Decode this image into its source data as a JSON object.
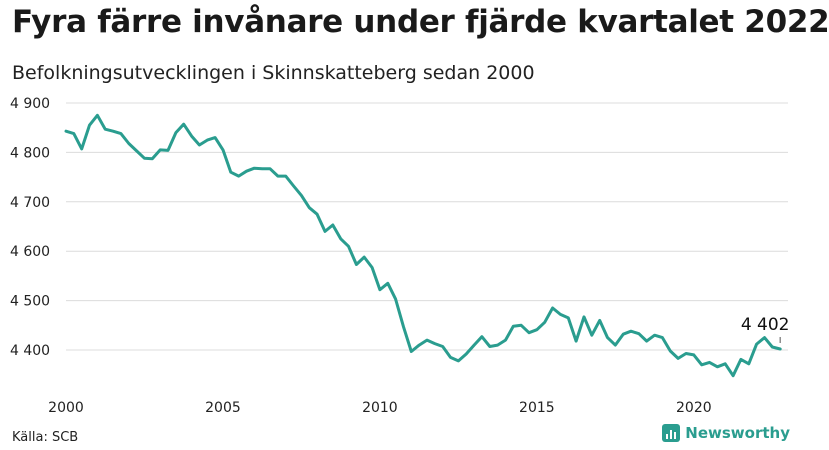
{
  "title": "Fyra färre invånare under fjärde kvartalet 2022",
  "subtitle": "Befolkningsutvecklingen i Skinnskatteberg sedan 2000",
  "source": "Källa: SCB",
  "brand": {
    "name": "Newsworthy",
    "icon": "bar-chart-icon",
    "color": "#2a9d8f"
  },
  "chart_data": {
    "type": "line",
    "title": "Fyra färre invånare under fjärde kvartalet 2022",
    "subtitle": "Befolkningsutvecklingen i Skinnskatteberg sedan 2000",
    "xlabel": "",
    "ylabel": "",
    "xlim": [
      2000,
      2023
    ],
    "ylim": [
      4340,
      4900
    ],
    "x_ticks": [
      2000,
      2005,
      2010,
      2015,
      2020
    ],
    "x_tick_labels": [
      "2000",
      "2005",
      "2010",
      "2015",
      "2020"
    ],
    "y_ticks": [
      4400,
      4500,
      4600,
      4700,
      4800,
      4900
    ],
    "y_tick_labels": [
      "4 400",
      "4 500",
      "4 600",
      "4 700",
      "4 800",
      "4 900"
    ],
    "grid": true,
    "line_color": "#2a9d8f",
    "annotation": {
      "label": "4 402",
      "x": 2022.75,
      "y": 4402
    },
    "series": [
      {
        "x": [
          2000.0,
          2000.25,
          2000.5,
          2000.75,
          2001.0,
          2001.25,
          2001.5,
          2001.75,
          2002.0,
          2002.25,
          2002.5,
          2002.75,
          2003.0,
          2003.25,
          2003.5,
          2003.75,
          2004.0,
          2004.25,
          2004.5,
          2004.75,
          2005.0,
          2005.25,
          2005.5,
          2005.75,
          2006.0,
          2006.25,
          2006.5,
          2006.75,
          2007.0,
          2007.25,
          2007.5,
          2007.75,
          2008.0,
          2008.25,
          2008.5,
          2008.75,
          2009.0,
          2009.25,
          2009.5,
          2009.75,
          2010.0,
          2010.25,
          2010.5,
          2010.75,
          2011.0,
          2011.25,
          2011.5,
          2011.75,
          2012.0,
          2012.25,
          2012.5,
          2012.75,
          2013.0,
          2013.25,
          2013.5,
          2013.75,
          2014.0,
          2014.25,
          2014.5,
          2014.75,
          2015.0,
          2015.25,
          2015.5,
          2015.75,
          2016.0,
          2016.25,
          2016.5,
          2016.75,
          2017.0,
          2017.25,
          2017.5,
          2017.75,
          2018.0,
          2018.25,
          2018.5,
          2018.75,
          2019.0,
          2019.25,
          2019.5,
          2019.75,
          2020.0,
          2020.25,
          2020.5,
          2020.75,
          2021.0,
          2021.25,
          2021.5,
          2021.75,
          2022.0,
          2022.25,
          2022.5,
          2022.75
        ],
        "values": [
          4843,
          4838,
          4807,
          4855,
          4875,
          4847,
          4843,
          4838,
          4818,
          4803,
          4788,
          4787,
          4805,
          4804,
          4840,
          4857,
          4833,
          4815,
          4825,
          4830,
          4805,
          4760,
          4752,
          4762,
          4768,
          4767,
          4767,
          4752,
          4752,
          4732,
          4713,
          4688,
          4675,
          4640,
          4653,
          4625,
          4610,
          4573,
          4588,
          4567,
          4522,
          4535,
          4503,
          4447,
          4397,
          4410,
          4420,
          4413,
          4407,
          4385,
          4378,
          4392,
          4410,
          4427,
          4407,
          4410,
          4420,
          4448,
          4450,
          4435,
          4441,
          4456,
          4485,
          4472,
          4465,
          4418,
          4467,
          4430,
          4460,
          4425,
          4410,
          4432,
          4438,
          4433,
          4418,
          4430,
          4425,
          4398,
          4383,
          4393,
          4390,
          4370,
          4375,
          4366,
          4372,
          4348,
          4381,
          4372,
          4412,
          4425,
          4406,
          4402
        ]
      }
    ]
  }
}
